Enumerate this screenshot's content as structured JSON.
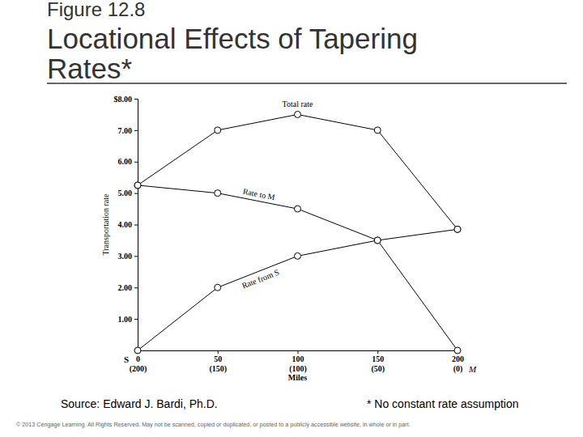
{
  "chart_data": {
    "type": "line",
    "figure_label": "Figure 12.8",
    "title": "Locational Effects of Tapering Rates*",
    "x_label": "Miles",
    "y_label": "Transportation rate",
    "x": [
      0,
      50,
      100,
      150,
      200
    ],
    "xlim": [
      0,
      200
    ],
    "xticks": [
      0,
      50,
      100,
      150,
      200
    ],
    "x_distance_labels": [
      "(200)",
      "(150)",
      "(100)",
      "(50)",
      "(0)"
    ],
    "origin_label": "S",
    "end_label": "M",
    "ylim": [
      0,
      8
    ],
    "yticks": [
      {
        "value": 1,
        "label": "1.00"
      },
      {
        "value": 2,
        "label": "2.00"
      },
      {
        "value": 3,
        "label": "3.00"
      },
      {
        "value": 4,
        "label": "4.00"
      },
      {
        "value": 5,
        "label": "5.00"
      },
      {
        "value": 6,
        "label": "6.00"
      },
      {
        "value": 7,
        "label": "7.00"
      },
      {
        "value": 8,
        "label": "$8.00"
      }
    ],
    "marker": "circle",
    "line_style": "solid",
    "series": [
      {
        "name": "Total rate",
        "color": "#000000",
        "values": [
          5.25,
          7.0,
          7.5,
          7.0,
          3.85
        ]
      },
      {
        "name": "Rate to M",
        "color": "#000000",
        "values": [
          5.25,
          5.0,
          4.5,
          3.5,
          0
        ]
      },
      {
        "name": "Rate from S",
        "color": "#000000",
        "values": [
          0,
          2.0,
          3.0,
          3.5,
          3.85
        ]
      }
    ],
    "source": "Source:  Edward J. Bardi, Ph.D.",
    "footnote": "* No constant rate assumption",
    "copyright": "© 2013 Cengage Learning. All Rights Reserved. May not be scanned, copied or duplicated, or posted to a publicly accessible website, in whole or in part."
  }
}
